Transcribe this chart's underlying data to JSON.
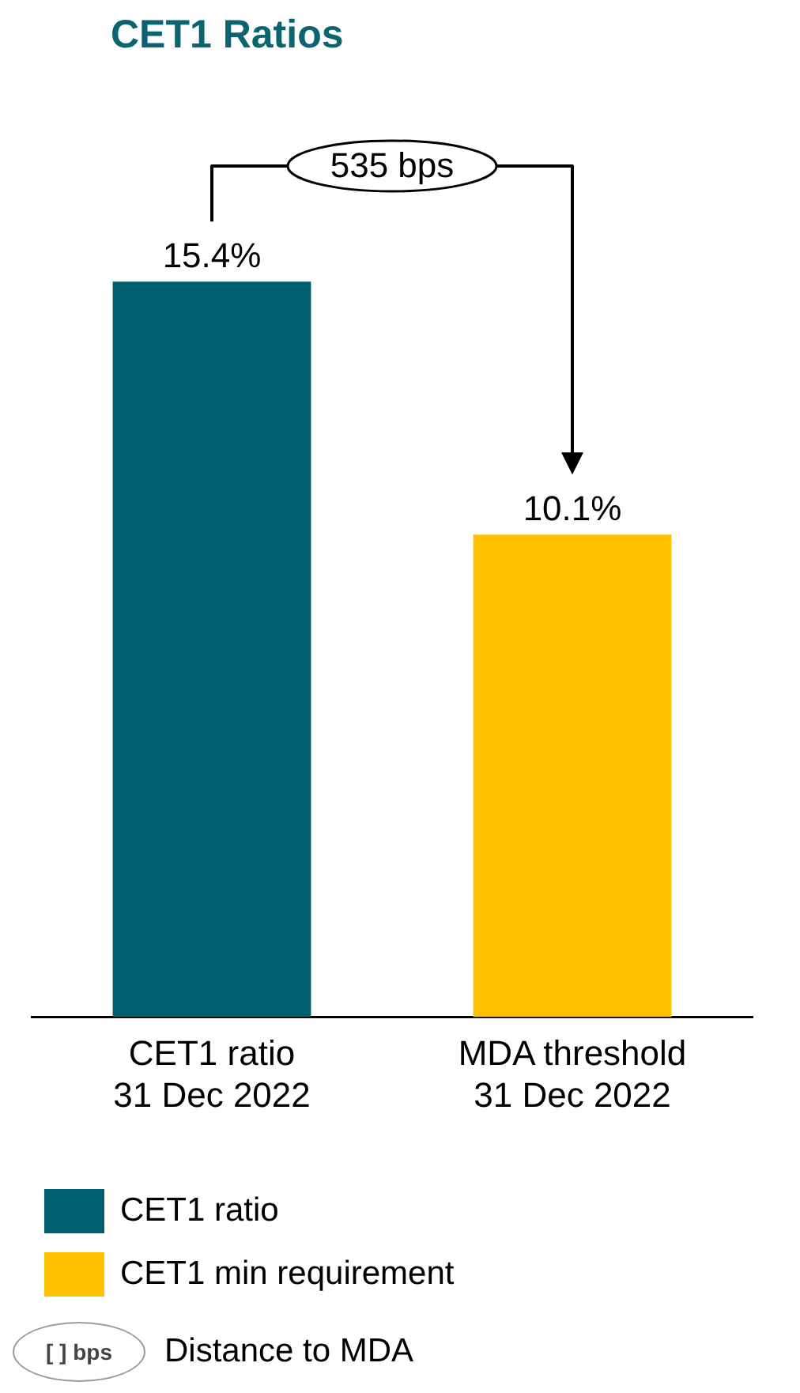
{
  "chart_data": {
    "type": "bar",
    "title": "CET1 Ratios",
    "categories": [
      "CET1 ratio\n31 Dec 2022",
      "MDA threshold\n31 Dec 2022"
    ],
    "stacked": true,
    "legend": "bottom left",
    "series": [
      {
        "name": "CET1 ratio",
        "color": "#005f6e",
        "values": [
          15.4,
          null
        ],
        "value_labels": [
          "15.4%",
          null
        ]
      },
      {
        "name": "CET1 min requirement",
        "color": "#ffc000",
        "values": [
          null,
          10.1
        ],
        "value_labels": [
          null,
          "10.1%"
        ]
      }
    ],
    "annotations": [
      "535 bps",
      "[ ] bps",
      "Distance to MDA"
    ]
  }
}
